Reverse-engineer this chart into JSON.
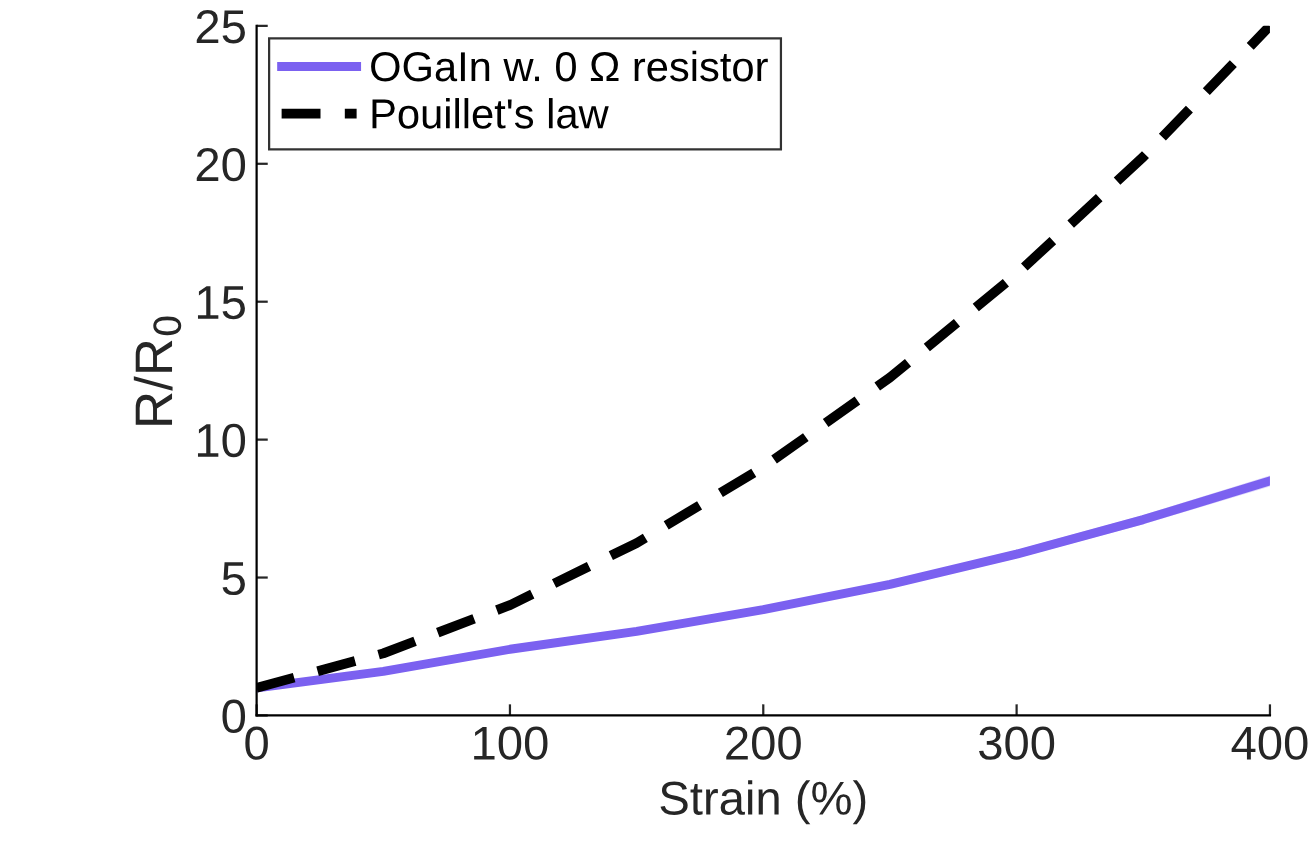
{
  "chart_data": {
    "type": "line",
    "xlabel": "Strain (%)",
    "ylabel": "R/R$_{0}$",
    "xlim": [
      0,
      400
    ],
    "xticks": [
      0,
      100,
      200,
      300,
      400
    ],
    "ylim": [
      0,
      25
    ],
    "yticks": [
      0,
      5,
      10,
      15,
      20,
      25
    ],
    "grid": false,
    "legend": "top left",
    "marker": "none",
    "series": [
      {
        "name": "OGaIn w. 0 Ω resistor",
        "color": "#7b61f0",
        "line_style": "solid",
        "x": [
          0,
          50,
          100,
          150,
          200,
          250,
          300,
          350,
          400
        ],
        "values": [
          1,
          1.6,
          2.4,
          3.05,
          3.84,
          4.75,
          5.85,
          7.1,
          8.5
        ],
        "lower": [
          0.95,
          1.53,
          2.32,
          2.95,
          3.72,
          4.62,
          5.7,
          6.93,
          8.3
        ],
        "upper": [
          1.05,
          1.67,
          2.48,
          3.15,
          3.96,
          4.88,
          6.0,
          7.27,
          8.7
        ]
      },
      {
        "name": "Pouillet's law",
        "color": "#000000",
        "line_style": "dashed",
        "x": [
          0,
          50,
          100,
          150,
          200,
          250,
          300,
          350,
          400
        ],
        "values": [
          1,
          2.25,
          4,
          6.25,
          9,
          12.25,
          16,
          20.25,
          25
        ]
      }
    ]
  }
}
